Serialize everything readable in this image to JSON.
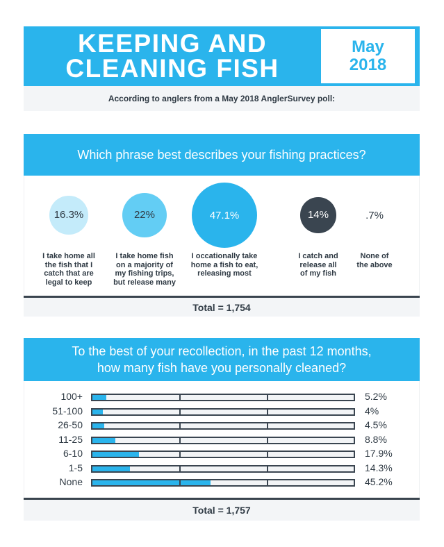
{
  "header": {
    "title_line1": "KEEPING AND",
    "title_line2": "CLEANING FISH",
    "month": "May",
    "year": "2018",
    "subtitle": "According to anglers from a May 2018 AnglerSurvey poll:"
  },
  "colors": {
    "accent": "#2ab4ec",
    "light_bubble": "#c4ebfa",
    "mid_bubble": "#63cdf4",
    "dark": "#3a4550",
    "panel_bg": "#f3f5f7"
  },
  "chart_data": [
    {
      "type": "bubble",
      "title": "Which phrase best describes your fishing practices?",
      "categories": [
        "I take home all the fish that I catch that are legal to keep",
        "I take home fish on a majority of my fishing trips, but release many",
        "I occationally take home a fish to eat, releasing most",
        "I catch and release all of my fish",
        "None of the above"
      ],
      "values": [
        16.3,
        22,
        47.1,
        14,
        0.7
      ],
      "value_labels": [
        "16.3%",
        "22%",
        "47.1%",
        "14%",
        ".7%"
      ],
      "label_lines": [
        [
          "I take home all",
          "the fish that I",
          "catch that are",
          "legal to keep"
        ],
        [
          "I take home fish",
          "on a majority of",
          "my fishing trips,",
          "but release many"
        ],
        [
          "I occationally take",
          "home a fish to eat,",
          "releasing most"
        ],
        [
          "I catch and",
          "release all",
          "of my fish"
        ],
        [
          "None of",
          "the above"
        ]
      ],
      "bubble_colors": [
        "#c4ebfa",
        "#63cdf4",
        "#2ab4ec",
        "#3a4550",
        "#ffffff"
      ],
      "total": "Total = 1,754"
    },
    {
      "type": "bar",
      "orientation": "horizontal",
      "title_line1": "To the best of your recollection, in the past 12 months,",
      "title_line2": "how many fish have you personally cleaned?",
      "categories": [
        "100+",
        "51-100",
        "26-50",
        "11-25",
        "6-10",
        "1-5",
        "None"
      ],
      "values": [
        5.2,
        4,
        4.5,
        8.8,
        17.9,
        14.3,
        45.2
      ],
      "value_labels": [
        "5.2%",
        "4%",
        "4.5%",
        "8.8%",
        "17.9%",
        "14.3%",
        "45.2%"
      ],
      "xlim": [
        0,
        100
      ],
      "total": "Total = 1,757"
    }
  ]
}
